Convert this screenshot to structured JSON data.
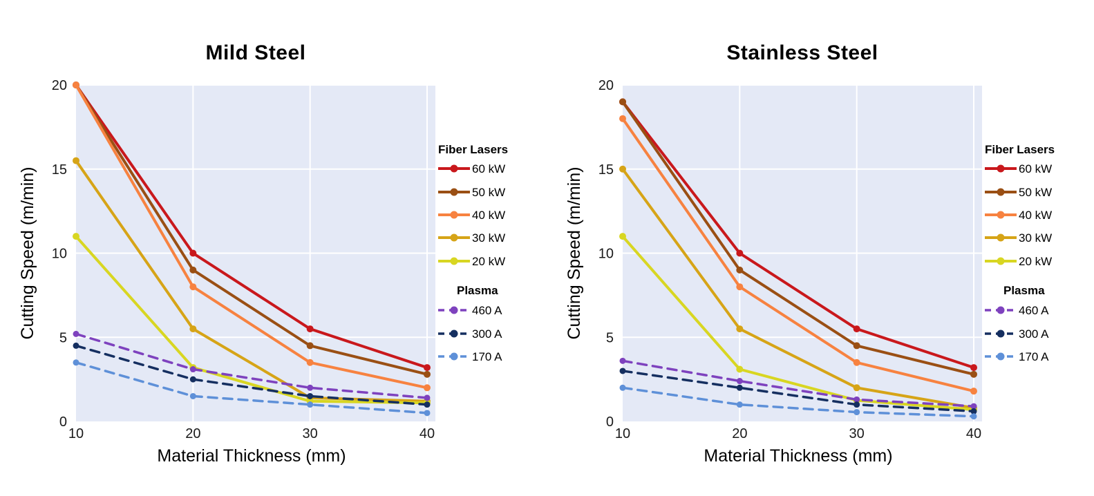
{
  "styles": {
    "plot_bg": "#e4e9f6",
    "grid_color": "#ffffff",
    "tick_color": "#1a1a1a",
    "title_color": "#000000"
  },
  "chart_data": [
    {
      "type": "line",
      "title": "Mild Steel",
      "xlabel": "Material Thickness (mm)",
      "ylabel": "Cutting Speed (m/min)",
      "x": [
        10,
        20,
        30,
        40
      ],
      "xticks": [
        10,
        20,
        30,
        40
      ],
      "yticks": [
        0,
        5,
        10,
        15,
        20
      ],
      "xlim": [
        10,
        40
      ],
      "ylim": [
        0,
        20
      ],
      "grid": true,
      "legend_position": "right",
      "legend_headers": [
        "Fiber Lasers",
        "Plasma"
      ],
      "series": [
        {
          "name": "60 kW",
          "group": "Fiber Lasers",
          "style": "solid",
          "color": "#c9181c",
          "values": [
            20,
            10,
            5.5,
            3.2
          ]
        },
        {
          "name": "50 kW",
          "group": "Fiber Lasers",
          "style": "solid",
          "color": "#9a4f14",
          "values": [
            20,
            9,
            4.5,
            2.8
          ]
        },
        {
          "name": "40 kW",
          "group": "Fiber Lasers",
          "style": "solid",
          "color": "#f78240",
          "values": [
            20,
            8,
            3.5,
            2.0
          ]
        },
        {
          "name": "30 kW",
          "group": "Fiber Lasers",
          "style": "solid",
          "color": "#d6a417",
          "values": [
            15.5,
            5.5,
            1.4,
            1.2
          ]
        },
        {
          "name": "20 kW",
          "group": "Fiber Lasers",
          "style": "solid",
          "color": "#d8d622",
          "values": [
            11,
            3.2,
            1.2,
            1.1
          ]
        },
        {
          "name": "460 A",
          "group": "Plasma",
          "style": "dashed",
          "color": "#7e42be",
          "values": [
            5.2,
            3.1,
            2.0,
            1.4
          ]
        },
        {
          "name": "300 A",
          "group": "Plasma",
          "style": "dashed",
          "color": "#152f60",
          "values": [
            4.5,
            2.5,
            1.5,
            1.0
          ]
        },
        {
          "name": "170 A",
          "group": "Plasma",
          "style": "dashed",
          "color": "#5e90d8",
          "values": [
            3.5,
            1.5,
            1.0,
            0.5
          ]
        }
      ]
    },
    {
      "type": "line",
      "title": "Stainless Steel",
      "xlabel": "Material Thickness (mm)",
      "ylabel": "Cutting Speed (m/min)",
      "x": [
        10,
        20,
        30,
        40
      ],
      "xticks": [
        10,
        20,
        30,
        40
      ],
      "yticks": [
        0,
        5,
        10,
        15,
        20
      ],
      "xlim": [
        10,
        40
      ],
      "ylim": [
        0,
        20
      ],
      "grid": true,
      "legend_position": "right",
      "legend_headers": [
        "Fiber Lasers",
        "Plasma"
      ],
      "series": [
        {
          "name": "60 kW",
          "group": "Fiber Lasers",
          "style": "solid",
          "color": "#c9181c",
          "values": [
            19,
            10,
            5.5,
            3.2
          ]
        },
        {
          "name": "50 kW",
          "group": "Fiber Lasers",
          "style": "solid",
          "color": "#9a4f14",
          "values": [
            19,
            9,
            4.5,
            2.8
          ]
        },
        {
          "name": "40 kW",
          "group": "Fiber Lasers",
          "style": "solid",
          "color": "#f78240",
          "values": [
            18,
            8,
            3.5,
            1.8
          ]
        },
        {
          "name": "30 kW",
          "group": "Fiber Lasers",
          "style": "solid",
          "color": "#d6a417",
          "values": [
            15,
            5.5,
            2.0,
            0.8
          ]
        },
        {
          "name": "20 kW",
          "group": "Fiber Lasers",
          "style": "solid",
          "color": "#d8d622",
          "values": [
            11,
            3.1,
            1.25,
            0.7
          ]
        },
        {
          "name": "460 A",
          "group": "Plasma",
          "style": "dashed",
          "color": "#7e42be",
          "values": [
            3.6,
            2.4,
            1.3,
            0.9
          ]
        },
        {
          "name": "300 A",
          "group": "Plasma",
          "style": "dashed",
          "color": "#152f60",
          "values": [
            3.0,
            2.0,
            1.0,
            0.6
          ]
        },
        {
          "name": "170 A",
          "group": "Plasma",
          "style": "dashed",
          "color": "#5e90d8",
          "values": [
            2.0,
            1.0,
            0.55,
            0.3
          ]
        }
      ]
    }
  ]
}
